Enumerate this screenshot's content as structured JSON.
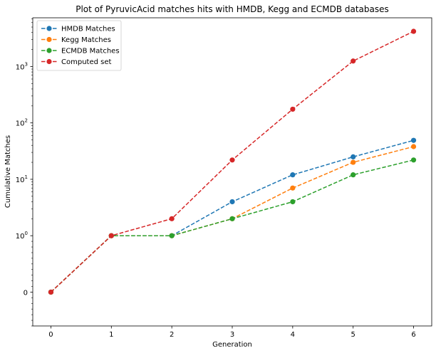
{
  "chart_data": {
    "type": "line",
    "title": "Plot of PyruvicAcid matches hits with HMDB, Kegg and ECMDB databases",
    "xlabel": "Generation",
    "ylabel": "Cumulative Matches",
    "yscale": "symlog",
    "x": [
      0,
      1,
      2,
      3,
      4,
      5,
      6
    ],
    "xticks": [
      "0",
      "1",
      "2",
      "3",
      "4",
      "5",
      "6"
    ],
    "yticks": [
      {
        "value": 0,
        "base": "0",
        "exp": ""
      },
      {
        "value": 1,
        "base": "10",
        "exp": "0"
      },
      {
        "value": 10,
        "base": "10",
        "exp": "1"
      },
      {
        "value": 100,
        "base": "10",
        "exp": "2"
      },
      {
        "value": 1000,
        "base": "10",
        "exp": "3"
      }
    ],
    "ylim": [
      -0.6,
      7300
    ],
    "grid": false,
    "legend_position": "top-left",
    "series": [
      {
        "name": "HMDB Matches",
        "color": "#1f77b4",
        "values": [
          0,
          1,
          1,
          4,
          12,
          25,
          49
        ]
      },
      {
        "name": "Kegg Matches",
        "color": "#ff7f0e",
        "values": [
          0,
          1,
          1,
          2,
          7,
          20,
          38
        ]
      },
      {
        "name": "ECMDB Matches",
        "color": "#2ca02c",
        "values": [
          0,
          1,
          1,
          2,
          4,
          12,
          22
        ]
      },
      {
        "name": "Computed set",
        "color": "#d62728",
        "values": [
          0,
          1,
          2,
          22,
          175,
          1250,
          4200
        ]
      }
    ]
  }
}
